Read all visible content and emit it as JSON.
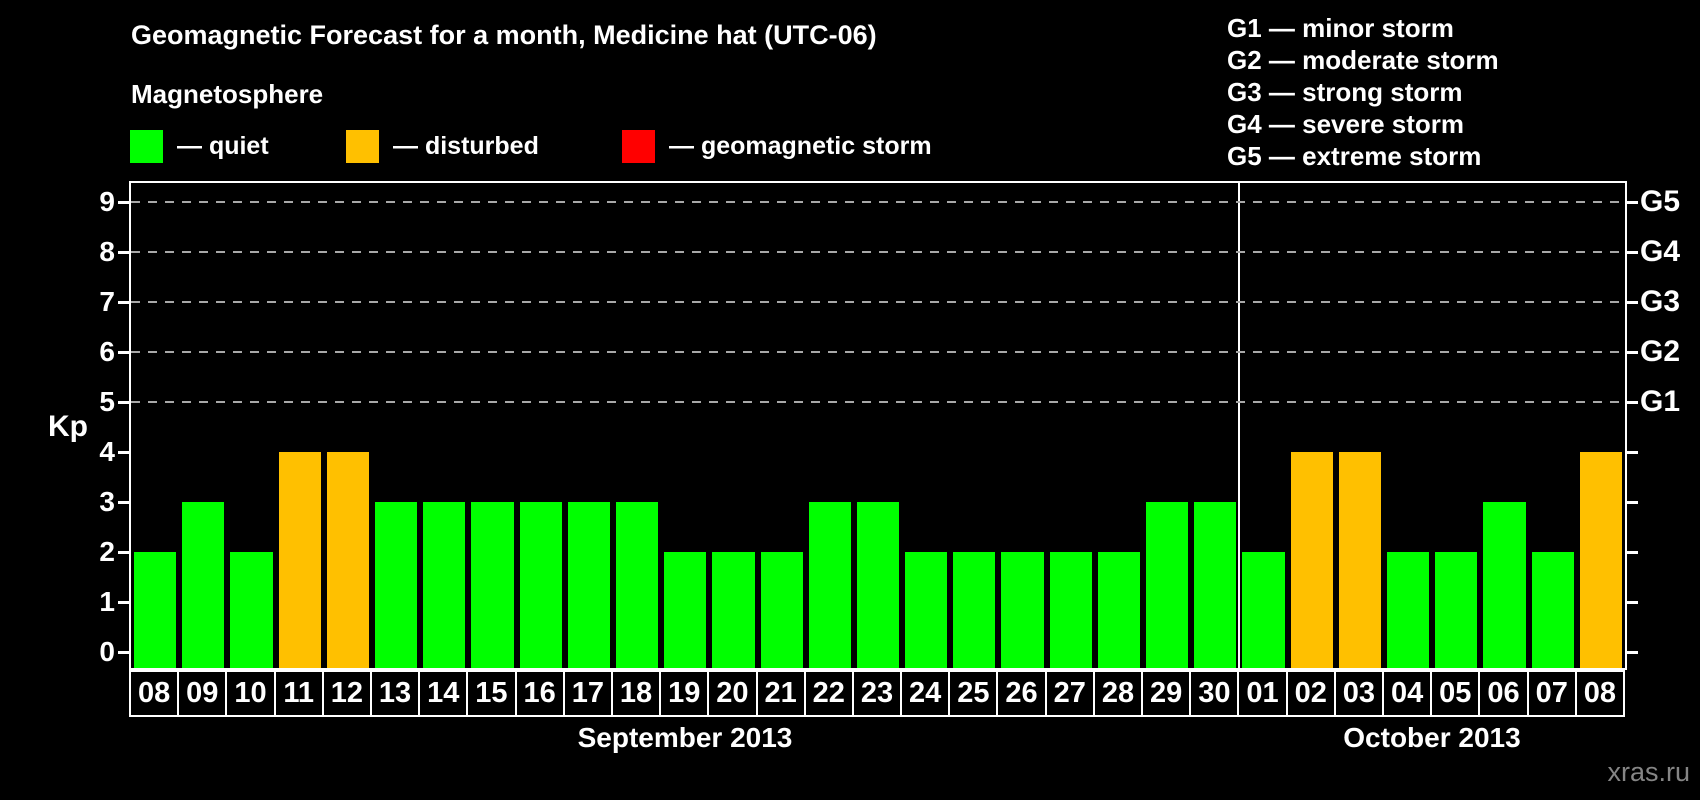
{
  "header": {
    "title": "Geomagnetic Forecast for a month, Medicine hat (UTC-06)"
  },
  "legend": {
    "title": "Magnetosphere",
    "items": [
      {
        "key": "quiet",
        "label": "— quiet",
        "color": "#00FF00"
      },
      {
        "key": "disturbed",
        "label": "— disturbed",
        "color": "#FFC000"
      },
      {
        "key": "storm",
        "label": "— geomagnetic storm",
        "color": "#FF0000"
      }
    ]
  },
  "g_legend": {
    "items": [
      "G1 — minor storm",
      "G2 — moderate storm",
      "G3 — strong storm",
      "G4 — severe storm",
      "G5 — extreme storm"
    ]
  },
  "watermark": "xras.ru",
  "chart_data": {
    "type": "bar",
    "title": "Geomagnetic Forecast for a month, Medicine hat (UTC-06)",
    "ylabel": "Kp",
    "xlabel": "",
    "ylim": [
      0,
      9.4
    ],
    "yticks": [
      0,
      1,
      2,
      3,
      4,
      5,
      6,
      7,
      8,
      9
    ],
    "grid": "dashed horizontal lines at Kp 5-9 only",
    "legend_position": "top",
    "status_colors": {
      "quiet": "#00FF00",
      "disturbed": "#FFC000",
      "storm": "#FF0000"
    },
    "right_axis": [
      {
        "label": "G1",
        "kp": 5
      },
      {
        "label": "G2",
        "kp": 6
      },
      {
        "label": "G3",
        "kp": 7
      },
      {
        "label": "G4",
        "kp": 8
      },
      {
        "label": "G5",
        "kp": 9
      }
    ],
    "months": [
      {
        "label": "September 2013",
        "start_index": 0,
        "days_count": 23
      },
      {
        "label": "October 2013",
        "start_index": 23,
        "days_count": 8
      }
    ],
    "days": [
      {
        "day": "08",
        "kp": 2,
        "status": "quiet"
      },
      {
        "day": "09",
        "kp": 3,
        "status": "quiet"
      },
      {
        "day": "10",
        "kp": 2,
        "status": "quiet"
      },
      {
        "day": "11",
        "kp": 4,
        "status": "disturbed"
      },
      {
        "day": "12",
        "kp": 4,
        "status": "disturbed"
      },
      {
        "day": "13",
        "kp": 3,
        "status": "quiet"
      },
      {
        "day": "14",
        "kp": 3,
        "status": "quiet"
      },
      {
        "day": "15",
        "kp": 3,
        "status": "quiet"
      },
      {
        "day": "16",
        "kp": 3,
        "status": "quiet"
      },
      {
        "day": "17",
        "kp": 3,
        "status": "quiet"
      },
      {
        "day": "18",
        "kp": 3,
        "status": "quiet"
      },
      {
        "day": "19",
        "kp": 2,
        "status": "quiet"
      },
      {
        "day": "20",
        "kp": 2,
        "status": "quiet"
      },
      {
        "day": "21",
        "kp": 2,
        "status": "quiet"
      },
      {
        "day": "22",
        "kp": 3,
        "status": "quiet"
      },
      {
        "day": "23",
        "kp": 3,
        "status": "quiet"
      },
      {
        "day": "24",
        "kp": 2,
        "status": "quiet"
      },
      {
        "day": "25",
        "kp": 2,
        "status": "quiet"
      },
      {
        "day": "26",
        "kp": 2,
        "status": "quiet"
      },
      {
        "day": "27",
        "kp": 2,
        "status": "quiet"
      },
      {
        "day": "28",
        "kp": 2,
        "status": "quiet"
      },
      {
        "day": "29",
        "kp": 3,
        "status": "quiet"
      },
      {
        "day": "30",
        "kp": 3,
        "status": "quiet"
      },
      {
        "day": "01",
        "kp": 2,
        "status": "quiet"
      },
      {
        "day": "02",
        "kp": 4,
        "status": "disturbed"
      },
      {
        "day": "03",
        "kp": 4,
        "status": "disturbed"
      },
      {
        "day": "04",
        "kp": 2,
        "status": "quiet"
      },
      {
        "day": "05",
        "kp": 2,
        "status": "quiet"
      },
      {
        "day": "06",
        "kp": 3,
        "status": "quiet"
      },
      {
        "day": "07",
        "kp": 2,
        "status": "quiet"
      },
      {
        "day": "08",
        "kp": 4,
        "status": "disturbed"
      }
    ]
  }
}
